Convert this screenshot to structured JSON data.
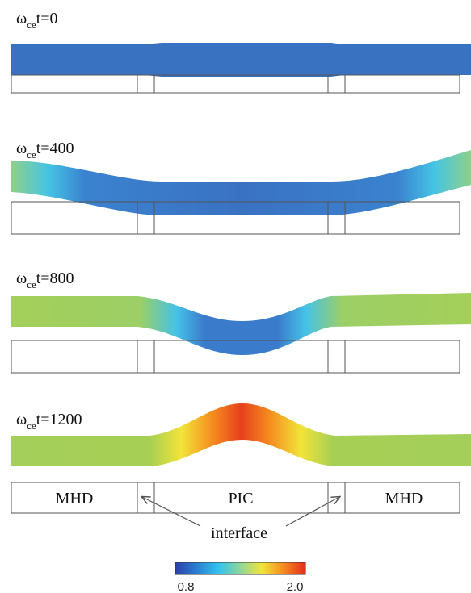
{
  "panels": [
    {
      "symbol": "ω",
      "subscript": "ce",
      "suffix": "t=0"
    },
    {
      "symbol": "ω",
      "subscript": "ce",
      "suffix": "t=400"
    },
    {
      "symbol": "ω",
      "subscript": "ce",
      "suffix": "t=800"
    },
    {
      "symbol": "ω",
      "subscript": "ce",
      "suffix": "t=1200"
    }
  ],
  "regions": {
    "left": "MHD",
    "center": "PIC",
    "right": "MHD"
  },
  "interface_label": "interface",
  "colorbar": {
    "min_label": "0.8",
    "max_label": "2.0",
    "colors": [
      "#2b3fa8",
      "#2a7fd2",
      "#33c3ee",
      "#8fd69a",
      "#f2e438",
      "#f58a1f",
      "#e32b1c"
    ]
  },
  "band_colors": {
    "base": "#3a75c4",
    "dark": "#2f5fb5",
    "cyan": "#3fbfe6",
    "green": "#a4cf5a",
    "yellow": "#f2e438",
    "orange": "#f58a1f",
    "red": "#e6401c"
  }
}
